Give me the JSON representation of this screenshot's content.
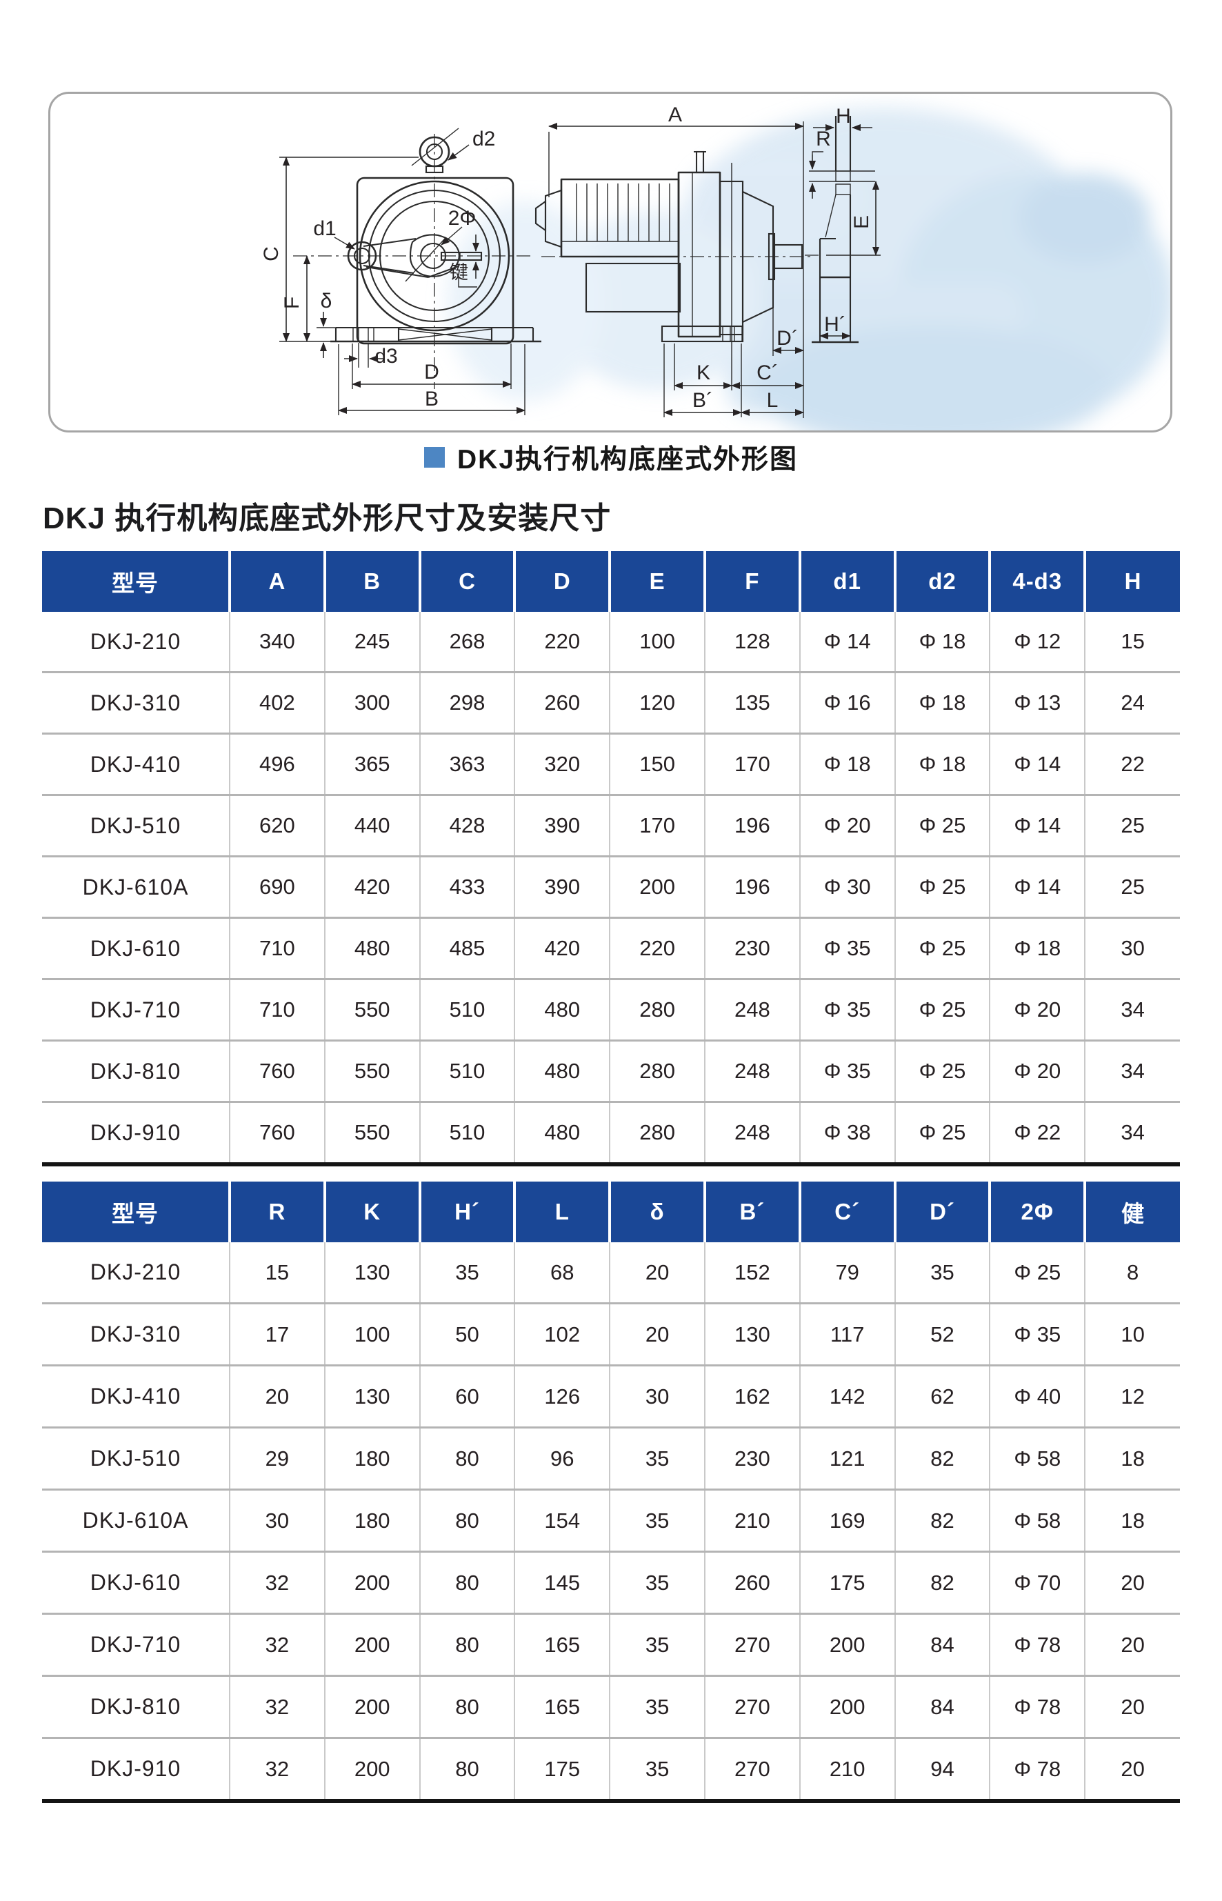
{
  "colors": {
    "header_bg": "#1a4796",
    "header_text": "#ffffff",
    "caption_square": "#4d86c3",
    "table_border_bottom": "#141414"
  },
  "figure": {
    "caption": "DKJ执行机构底座式外形图",
    "view_labels": {
      "d1": "d1",
      "d2": "d2",
      "d3": "d3",
      "two_phi": "2Φ",
      "key_note": "键",
      "C": "C",
      "F": "F",
      "delta": "δ",
      "D": "D",
      "B": "B",
      "A": "A",
      "H": "H",
      "R": "R",
      "E": "E",
      "D_p": "D´",
      "H_p": "H´",
      "K": "K",
      "C_p": "C´",
      "B_p": "B´",
      "L": "L"
    }
  },
  "heading": "DKJ 执行机构底座式外形尺寸及安装尺寸",
  "table1": {
    "headers": [
      "型号",
      "A",
      "B",
      "C",
      "D",
      "E",
      "F",
      "d1",
      "d2",
      "4-d3",
      "H"
    ],
    "rows": [
      [
        "DKJ-210",
        "340",
        "245",
        "268",
        "220",
        "100",
        "128",
        "Φ 14",
        "Φ 18",
        "Φ 12",
        "15"
      ],
      [
        "DKJ-310",
        "402",
        "300",
        "298",
        "260",
        "120",
        "135",
        "Φ 16",
        "Φ 18",
        "Φ 13",
        "24"
      ],
      [
        "DKJ-410",
        "496",
        "365",
        "363",
        "320",
        "150",
        "170",
        "Φ 18",
        "Φ 18",
        "Φ 14",
        "22"
      ],
      [
        "DKJ-510",
        "620",
        "440",
        "428",
        "390",
        "170",
        "196",
        "Φ 20",
        "Φ 25",
        "Φ 14",
        "25"
      ],
      [
        "DKJ-610A",
        "690",
        "420",
        "433",
        "390",
        "200",
        "196",
        "Φ 30",
        "Φ 25",
        "Φ 14",
        "25"
      ],
      [
        "DKJ-610",
        "710",
        "480",
        "485",
        "420",
        "220",
        "230",
        "Φ 35",
        "Φ 25",
        "Φ 18",
        "30"
      ],
      [
        "DKJ-710",
        "710",
        "550",
        "510",
        "480",
        "280",
        "248",
        "Φ 35",
        "Φ 25",
        "Φ 20",
        "34"
      ],
      [
        "DKJ-810",
        "760",
        "550",
        "510",
        "480",
        "280",
        "248",
        "Φ 35",
        "Φ 25",
        "Φ 20",
        "34"
      ],
      [
        "DKJ-910",
        "760",
        "550",
        "510",
        "480",
        "280",
        "248",
        "Φ 38",
        "Φ 25",
        "Φ 22",
        "34"
      ]
    ]
  },
  "table2": {
    "headers": [
      "型号",
      "R",
      "K",
      "H´",
      "L",
      "δ",
      "B´",
      "C´",
      "D´",
      "2Φ",
      "健"
    ],
    "rows": [
      [
        "DKJ-210",
        "15",
        "130",
        "35",
        "68",
        "20",
        "152",
        "79",
        "35",
        "Φ 25",
        "8"
      ],
      [
        "DKJ-310",
        "17",
        "100",
        "50",
        "102",
        "20",
        "130",
        "117",
        "52",
        "Φ 35",
        "10"
      ],
      [
        "DKJ-410",
        "20",
        "130",
        "60",
        "126",
        "30",
        "162",
        "142",
        "62",
        "Φ 40",
        "12"
      ],
      [
        "DKJ-510",
        "29",
        "180",
        "80",
        "96",
        "35",
        "230",
        "121",
        "82",
        "Φ 58",
        "18"
      ],
      [
        "DKJ-610A",
        "30",
        "180",
        "80",
        "154",
        "35",
        "210",
        "169",
        "82",
        "Φ 58",
        "18"
      ],
      [
        "DKJ-610",
        "32",
        "200",
        "80",
        "145",
        "35",
        "260",
        "175",
        "82",
        "Φ 70",
        "20"
      ],
      [
        "DKJ-710",
        "32",
        "200",
        "80",
        "165",
        "35",
        "270",
        "200",
        "84",
        "Φ 78",
        "20"
      ],
      [
        "DKJ-810",
        "32",
        "200",
        "80",
        "165",
        "35",
        "270",
        "200",
        "84",
        "Φ 78",
        "20"
      ],
      [
        "DKJ-910",
        "32",
        "200",
        "80",
        "175",
        "35",
        "270",
        "210",
        "94",
        "Φ 78",
        "20"
      ]
    ]
  }
}
